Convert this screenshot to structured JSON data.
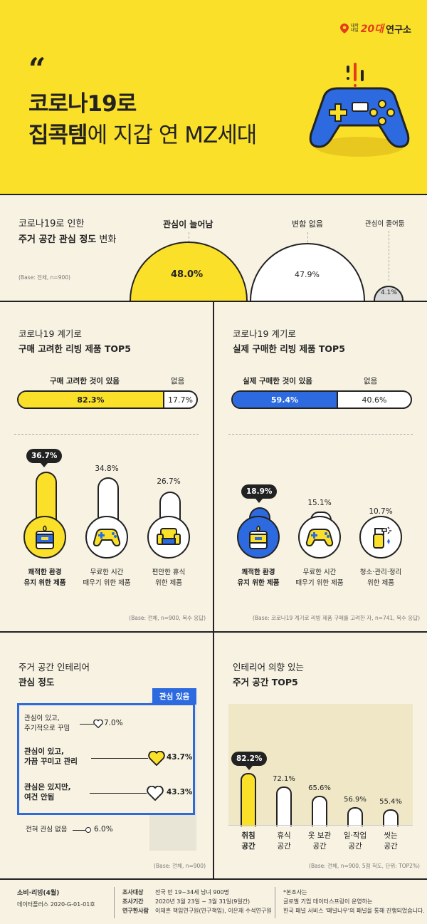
{
  "brand": {
    "small_top": "대학",
    "small_bottom": "내일",
    "number": "20대",
    "word": "연구소"
  },
  "hero": {
    "quote_mark": "“",
    "line1": "코로나19로",
    "line2_bold": "집콕템",
    "line2_rest": "에 지갑 연 MZ세대"
  },
  "section1": {
    "title_line1": "코로나19로 인한",
    "title_line2_bold": "주거 공간 관심 정도",
    "title_line2_rest": " 변화",
    "base": "(Base: 전체, n=900)",
    "items": [
      {
        "label": "관심이 늘어남",
        "value": "48.0%",
        "color": "#fbe02a"
      },
      {
        "label": "변함 없음",
        "value": "47.9%",
        "color": "#ffffff"
      },
      {
        "label": "관심이 줄어듦",
        "value": "4.1%",
        "color": "#d8d8d8"
      }
    ]
  },
  "panel_considered": {
    "title_line1": "코로나19 계기로",
    "title_line2": "구매 고려한 리빙 제품 TOP5",
    "bar_label_yes": "구매 고려한 것이 있음",
    "bar_label_no": "없음",
    "bar_yes": "82.3%",
    "bar_no": "17.7%",
    "bar_yes_fraction": 0.823,
    "accent": "#fbe02a",
    "items": [
      {
        "value": "36.7%",
        "label_line1": "쾌적한 환경",
        "label_line2": "유지 위한 제품",
        "icon": "candle-icon",
        "highlight": true
      },
      {
        "value": "34.8%",
        "label_line1": "무료한 시간",
        "label_line2": "때우기 위한 제품",
        "icon": "gamepad-icon",
        "highlight": false
      },
      {
        "value": "26.7%",
        "label_line1": "편안한 휴식",
        "label_line2": "위한 제품",
        "icon": "armchair-icon",
        "highlight": false
      }
    ],
    "base": "(Base: 전체, n=900, 복수 응답)"
  },
  "panel_purchased": {
    "title_line1": "코로나19 계기로",
    "title_line2": "실제 구매한 리빙 제품 TOP5",
    "bar_label_yes": "실제 구매한 것이 있음",
    "bar_label_no": "없음",
    "bar_yes": "59.4%",
    "bar_no": "40.6%",
    "bar_yes_fraction": 0.594,
    "accent": "#2d6ae0",
    "items": [
      {
        "value": "18.9%",
        "label_line1": "쾌적한 환경",
        "label_line2": "유지 위한 제품",
        "icon": "candle-icon",
        "highlight": true
      },
      {
        "value": "15.1%",
        "label_line1": "무료한 시간",
        "label_line2": "때우기 위한 제품",
        "icon": "gamepad-icon",
        "highlight": false
      },
      {
        "value": "10.7%",
        "label_line1": "청소·관리·정리",
        "label_line2": "위한 제품",
        "icon": "spray-bottle-icon",
        "highlight": false
      }
    ],
    "base": "(Base: 코로나19 계기로 리빙 제품 구매를 고려한 자, n=741, 복수 응답)"
  },
  "panel_interest": {
    "title_line1": "주거 공간 인테리어",
    "title_line2": "관심 정도",
    "tag": "관심 있음",
    "rows": [
      {
        "line1": "관심이 있고,",
        "line2": "주기적으로 꾸밈",
        "value": "7.0%",
        "bold": false
      },
      {
        "line1": "관심이 있고,",
        "line2": "가끔 꾸미고 관리",
        "value": "43.7%",
        "bold": true
      },
      {
        "line1": "관심은 있지만,",
        "line2": "여건 안됨",
        "value": "43.3%",
        "bold": true
      },
      {
        "line1": "전혀 관심 없음",
        "line2": "",
        "value": "6.0%",
        "bold": false
      }
    ],
    "base": "(Base: 전체, n=900)"
  },
  "panel_spaces": {
    "title_line1": "인테리어 의향 있는",
    "title_line2": "주거 공간 TOP5",
    "items": [
      {
        "value": "82.2%",
        "label_line1": "취침",
        "label_line2": "공간",
        "pct": 82.2,
        "highlight": true
      },
      {
        "value": "72.1%",
        "label_line1": "휴식",
        "label_line2": "공간",
        "pct": 72.1,
        "highlight": false
      },
      {
        "value": "65.6%",
        "label_line1": "옷 보관",
        "label_line2": "공간",
        "pct": 65.6,
        "highlight": false
      },
      {
        "value": "56.9%",
        "label_line1": "일·작업",
        "label_line2": "공간",
        "pct": 56.9,
        "highlight": false
      },
      {
        "value": "55.4%",
        "label_line1": "씻는",
        "label_line2": "공간",
        "pct": 55.4,
        "highlight": false
      }
    ],
    "base": "(Base: 전체, n=900, 5점 척도, 단위: TOP2%)"
  },
  "footer": {
    "series": "소비·리빙(4월)",
    "code": "데이터플러스 2020-G-01-01호",
    "target_label": "조사대상",
    "target": "전국 만 19~34세 남녀 900명",
    "period_label": "조사기간",
    "period": "2020년 3월 23일 ~ 3월 31일(9일간)",
    "researchers_label": "연구한사람",
    "researchers": "이재흔 책임연구원(연구책임), 이은재 수석연구원",
    "note_line1": "*본조사는",
    "note_line2": "글로벌 기업 데이터스프링이 운영하는",
    "note_line3": "한국 패널 서비스 '패널나우'의 패널을 통해 진행되었습니다."
  }
}
